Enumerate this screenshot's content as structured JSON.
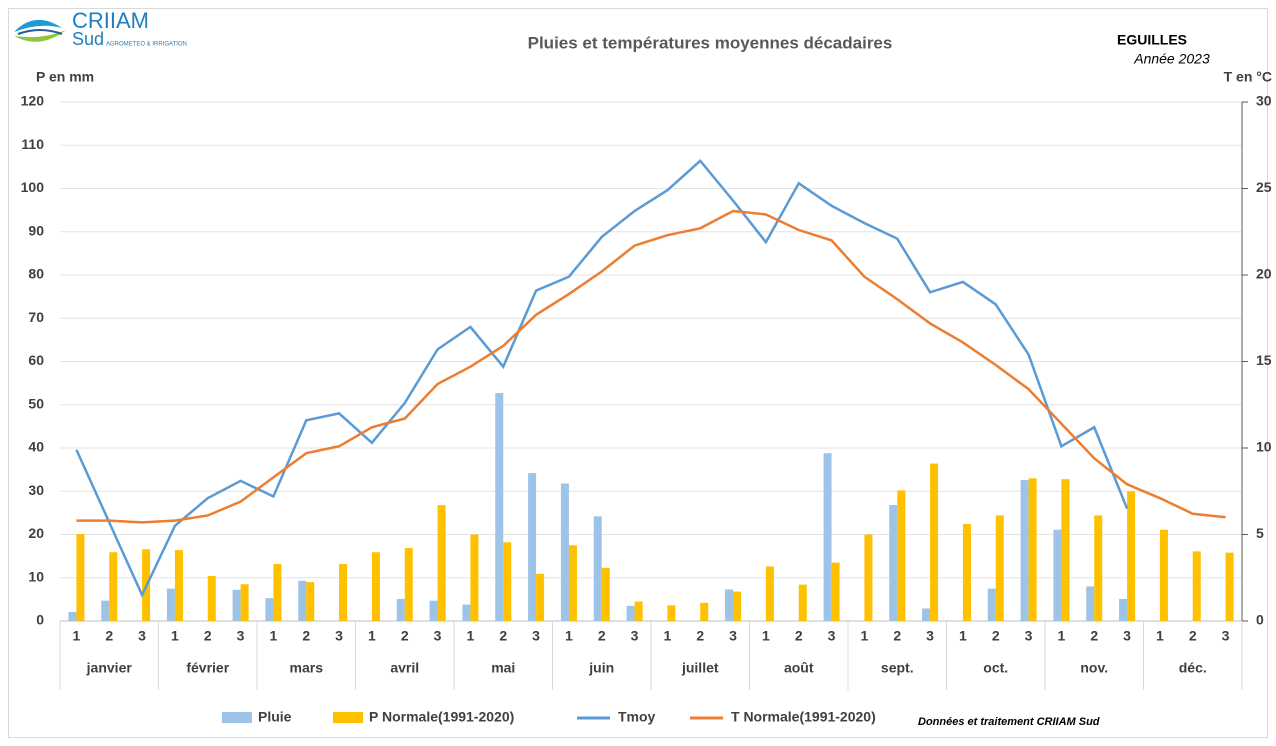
{
  "chart_data": {
    "type": "combo",
    "title": "Pluies et températures moyennes décadaires",
    "station": "EGUILLES",
    "year_label": "Année 2023",
    "logo": {
      "name": "CRIIAM",
      "sub": "Sud",
      "tagline": "AGROMETEO & IRRIGATION"
    },
    "y_label": "P en mm",
    "y2_label": "T en °C",
    "source": "Données et traitement  CRIIAM Sud",
    "categories": [
      "1",
      "2",
      "3",
      "1",
      "2",
      "3",
      "1",
      "2",
      "3",
      "1",
      "2",
      "3",
      "1",
      "2",
      "3",
      "1",
      "2",
      "3",
      "1",
      "2",
      "3",
      "1",
      "2",
      "3",
      "1",
      "2",
      "3",
      "1",
      "2",
      "3",
      "1",
      "2",
      "3",
      "1",
      "2",
      "3"
    ],
    "months": [
      "janvier",
      "février",
      "mars",
      "avril",
      "mai",
      "juin",
      "juillet",
      "août",
      "sept.",
      "oct.",
      "nov.",
      "déc."
    ],
    "ylim": [
      0,
      120
    ],
    "yticks": [
      0,
      10,
      20,
      30,
      40,
      50,
      60,
      70,
      80,
      90,
      100,
      110,
      120
    ],
    "y2lim": [
      0,
      30
    ],
    "y2ticks": [
      0,
      5,
      10,
      15,
      20,
      25,
      30
    ],
    "grid": true,
    "legend": "bottom",
    "series": [
      {
        "name": "Pluie",
        "type": "bar",
        "color": "#9dc3e6",
        "values": [
          2.1,
          4.7,
          0,
          7.5,
          0,
          7.2,
          5.3,
          9.3,
          0,
          0,
          5.1,
          4.7,
          3.8,
          52.7,
          34.2,
          31.8,
          24.2,
          3.5,
          0,
          0,
          7.3,
          0,
          0,
          38.8,
          0,
          26.8,
          2.9,
          0,
          7.5,
          32.6,
          21.1,
          8,
          5.1,
          0,
          0,
          0
        ]
      },
      {
        "name": "P Normale(1991-2020)",
        "type": "bar",
        "color": "#ffc000",
        "values": [
          20.1,
          15.9,
          16.6,
          16.4,
          10.4,
          8.5,
          13.2,
          9,
          13.2,
          15.9,
          16.9,
          26.8,
          20,
          18.2,
          10.9,
          17.5,
          12.3,
          4.5,
          3.6,
          4.2,
          6.8,
          12.6,
          8.4,
          13.5,
          20,
          30.2,
          36.4,
          22.4,
          24.4,
          33,
          32.8,
          24.4,
          30,
          21.1,
          16.1,
          15.8
        ]
      },
      {
        "name": "Tmoy",
        "type": "line",
        "axis": "y2",
        "color": "#5b9bd5",
        "values": [
          9.9,
          5.7,
          1.5,
          5.5,
          7.1,
          8.1,
          7.2,
          11.6,
          12.0,
          10.3,
          12.6,
          15.7,
          17.0,
          14.7,
          19.1,
          19.9,
          22.2,
          23.7,
          24.9,
          26.6,
          24.3,
          21.9,
          25.3,
          24.0,
          23.0,
          22.1,
          19.0,
          19.6,
          18.3,
          15.4,
          10.1,
          11.2,
          6.5,
          null,
          null,
          null
        ]
      },
      {
        "name": "T Normale(1991-2020)",
        "type": "line",
        "axis": "y2",
        "color": "#ed7d31",
        "values": [
          5.8,
          5.8,
          5.7,
          5.8,
          6.1,
          6.9,
          8.3,
          9.7,
          10.1,
          11.2,
          11.7,
          13.7,
          14.7,
          15.9,
          17.7,
          18.9,
          20.2,
          21.7,
          22.3,
          22.7,
          23.7,
          23.5,
          22.6,
          22.0,
          19.9,
          18.6,
          17.2,
          16.1,
          14.8,
          13.4,
          11.4,
          9.4,
          7.9,
          7.1,
          6.2,
          6.0
        ]
      }
    ]
  }
}
